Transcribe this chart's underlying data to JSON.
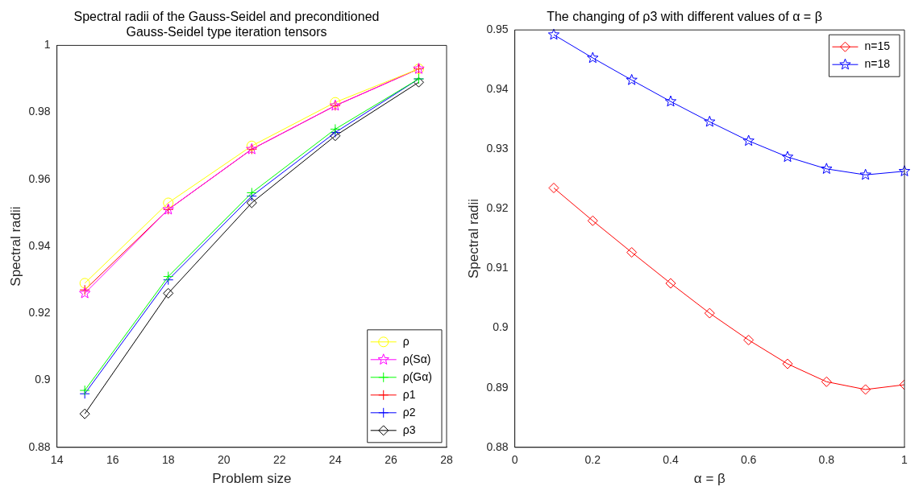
{
  "chart_data": [
    {
      "type": "line",
      "title": "Spectral radii of the Gauss-Seidel and preconditioned Gauss-Seidel type iteration tensors",
      "xlabel": "Problem size",
      "ylabel": "Spectral radii",
      "x": [
        15,
        18,
        21,
        24,
        27
      ],
      "xlim": [
        14,
        28
      ],
      "xticks": [
        14,
        16,
        18,
        20,
        22,
        24,
        26,
        28
      ],
      "ylim": [
        0.88,
        1
      ],
      "yticks": [
        0.88,
        0.9,
        0.92,
        0.94,
        0.96,
        0.98,
        1
      ],
      "grid": false,
      "legend": "bottom right",
      "series": [
        {
          "name": "ρ",
          "color": "#ffff00",
          "marker": "circle",
          "values": [
            0.929,
            0.953,
            0.97,
            0.983,
            0.993
          ]
        },
        {
          "name": "ρ(Sα)",
          "color": "#ff00ff",
          "marker": "star",
          "values": [
            0.926,
            0.951,
            0.969,
            0.982,
            0.993
          ]
        },
        {
          "name": "ρ(Gα)",
          "color": "#00ff00",
          "marker": "cross",
          "values": [
            0.897,
            0.931,
            0.956,
            0.975,
            0.99
          ]
        },
        {
          "name": "ρ1",
          "color": "#ff0000",
          "marker": "cross",
          "values": [
            0.927,
            0.951,
            0.969,
            0.982,
            0.993
          ]
        },
        {
          "name": "ρ2",
          "color": "#0000ff",
          "marker": "cross",
          "values": [
            0.896,
            0.93,
            0.955,
            0.974,
            0.99
          ]
        },
        {
          "name": "ρ3",
          "color": "#000000",
          "marker": "diamond",
          "values": [
            0.89,
            0.926,
            0.953,
            0.973,
            0.989
          ]
        }
      ]
    },
    {
      "type": "line",
      "title": "The changing of ρ3 with different values of α = β",
      "xlabel": "α = β",
      "ylabel": "Spectral radii",
      "x": [
        0.1,
        0.2,
        0.3,
        0.4,
        0.5,
        0.6,
        0.7,
        0.8,
        0.9,
        1.0
      ],
      "xlim": [
        0,
        1
      ],
      "xticks": [
        0,
        0.2,
        0.4,
        0.6,
        0.8,
        1
      ],
      "ylim": [
        0.88,
        0.95
      ],
      "yticks": [
        0.88,
        0.89,
        0.9,
        0.91,
        0.92,
        0.93,
        0.94,
        0.95
      ],
      "grid": false,
      "legend": "top right",
      "series": [
        {
          "name": "n=15",
          "color": "#ff0000",
          "marker": "diamond",
          "values": [
            0.9235,
            0.918,
            0.9127,
            0.9075,
            0.9025,
            0.898,
            0.894,
            0.891,
            0.8897,
            0.8905
          ]
        },
        {
          "name": "n=18",
          "color": "#0000ff",
          "marker": "star",
          "values": [
            0.9492,
            0.9453,
            0.9416,
            0.938,
            0.9346,
            0.9314,
            0.9287,
            0.9267,
            0.9257,
            0.9263
          ]
        }
      ]
    }
  ]
}
